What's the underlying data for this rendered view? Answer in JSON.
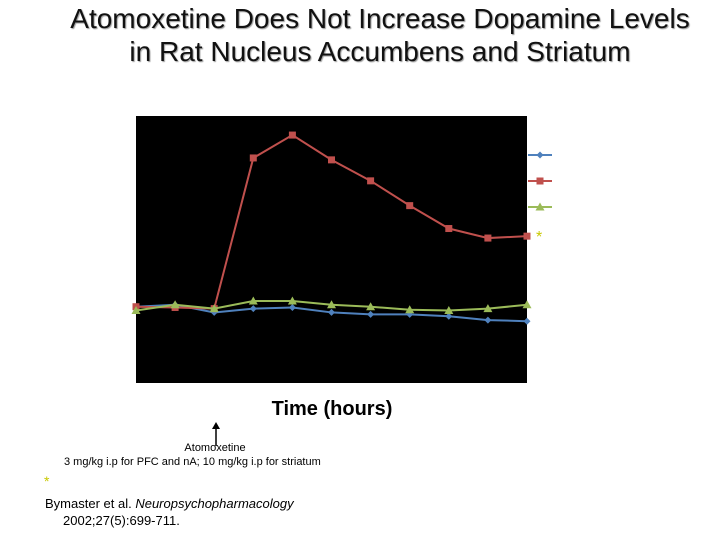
{
  "slide": {
    "title": "Atomoxetine Does Not Increase Dopamine Levels in Rat Nucleus Accumbens and Striatum",
    "annotation_drug": "Atomoxetine",
    "annotation_dose": "3 mg/kg i.p for PFC and nA; 10 mg/kg i.p for striatum",
    "footnote_star": "*",
    "citation": {
      "authors": "Bymaster et al.",
      "journal": "Neuropsychopharmacology",
      "ref": "2002;27(5):699-711."
    }
  },
  "colors": {
    "plot_bg": "#000000",
    "series_blue": "#4f81bd",
    "series_red": "#c0504d",
    "series_green": "#9bbb59",
    "star": "#c8c800"
  },
  "chart_data": {
    "type": "line",
    "xlabel": "Time (hours)",
    "ylabel": "",
    "x": [
      0,
      1,
      2,
      3,
      4,
      5,
      6,
      7,
      8,
      9,
      10
    ],
    "ylim": [
      0,
      7
    ],
    "grid": false,
    "legend": "right",
    "drug_administration_x": 2,
    "series": [
      {
        "marker": "diamond",
        "color": "#4f81bd",
        "values": [
          2.0,
          2.05,
          1.85,
          1.95,
          1.98,
          1.85,
          1.8,
          1.8,
          1.75,
          1.65,
          1.62
        ]
      },
      {
        "marker": "square",
        "color": "#c0504d",
        "values": [
          2.0,
          1.98,
          1.95,
          5.9,
          6.5,
          5.85,
          5.3,
          4.65,
          4.05,
          3.8,
          3.85
        ]
      },
      {
        "marker": "triangle",
        "color": "#9bbb59",
        "values": [
          1.9,
          2.05,
          1.95,
          2.15,
          2.15,
          2.05,
          2.0,
          1.92,
          1.9,
          1.95,
          2.05
        ]
      }
    ]
  }
}
